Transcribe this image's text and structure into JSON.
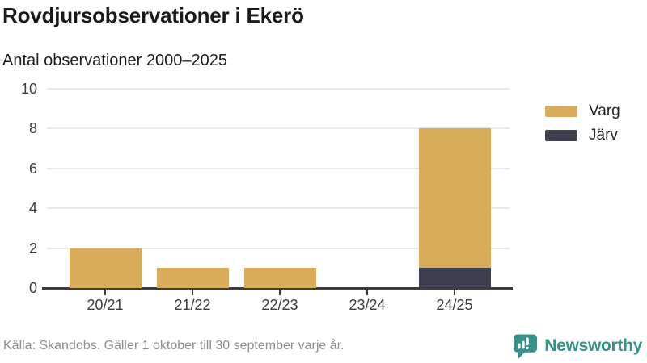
{
  "header": {
    "title": "Rovdjursobservationer i Ekerö",
    "subtitle": "Antal observationer 2000–2025"
  },
  "footer": {
    "source": "Källa: Skandobs. Gäller 1 oktober till 30 september varje år.",
    "brand": "Newsworthy"
  },
  "colors": {
    "varg": "#D9AC5C",
    "jarv": "#3D3E4D",
    "brand_teal": "#35918A",
    "axis_text": "#3D3D3D",
    "grid": "#E9E9E9",
    "source_text": "#8E8E8E",
    "title_text": "#1A1A1A"
  },
  "chart_data": {
    "type": "bar",
    "stacked": true,
    "title": "Rovdjursobservationer i Ekerö",
    "subtitle": "Antal observationer 2000–2025",
    "categories": [
      "20/21",
      "21/22",
      "22/23",
      "23/24",
      "24/25"
    ],
    "series": [
      {
        "name": "Varg",
        "color": "#D9AC5C",
        "values": [
          2,
          1,
          1,
          0,
          7
        ]
      },
      {
        "name": "Järv",
        "color": "#3D3E4D",
        "values": [
          0,
          0,
          0,
          0,
          1
        ]
      }
    ],
    "totals": [
      2,
      1,
      1,
      0,
      8
    ],
    "xlabel": "",
    "ylabel": "",
    "ylim": [
      0,
      10
    ],
    "yticks": [
      0,
      2,
      4,
      6,
      8,
      10
    ],
    "grid": true,
    "legend_position": "right",
    "legend_entries": [
      "Varg",
      "Järv"
    ]
  }
}
